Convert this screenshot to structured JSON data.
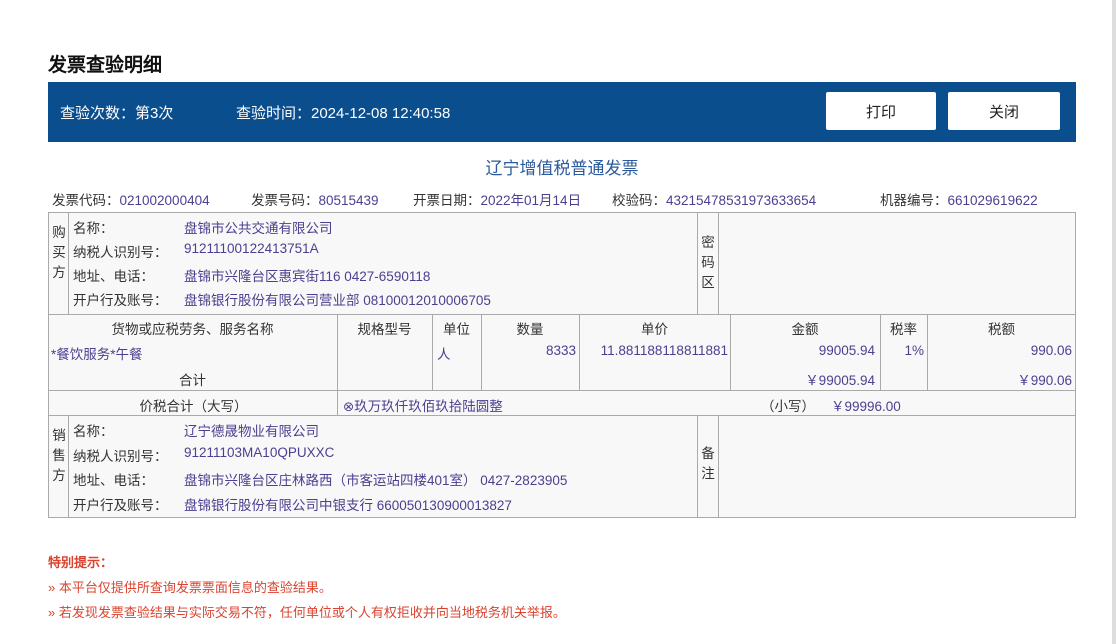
{
  "page_title": "发票查验明细",
  "bar": {
    "count_label": "查验次数：第3次",
    "time_label": "查验时间：2024-12-08 12:40:58",
    "print": "打印",
    "close": "关闭"
  },
  "invoice_title": "辽宁增值税普通发票",
  "meta": [
    {
      "label": "发票代码：",
      "value": "021002000404"
    },
    {
      "label": "发票号码：",
      "value": "80515439"
    },
    {
      "label": "开票日期：",
      "value": "2022年01月14日"
    },
    {
      "label": "校验码：",
      "value": "43215478531973633654"
    },
    {
      "label": "机器编号：",
      "value": "661029619622"
    }
  ],
  "buyer": {
    "side": "购买方",
    "fields": [
      {
        "label": "名称：",
        "value": "盘锦市公共交通有限公司"
      },
      {
        "label": "纳税人识别号：",
        "value": "91211100122413751A"
      },
      {
        "label": "地址、电话：",
        "value": "盘锦市兴隆台区惠宾街116 0427-6590118"
      },
      {
        "label": "开户行及账号：",
        "value": "盘锦银行股份有限公司营业部 08100012010006705"
      }
    ],
    "code_area": "密码区"
  },
  "items": {
    "headers": [
      "货物或应税劳务、服务名称",
      "规格型号",
      "单位",
      "数量",
      "单价",
      "金额",
      "税率",
      "税额"
    ],
    "rows": [
      [
        "*餐饮服务*午餐",
        "",
        "人",
        "8333",
        "11.881188118811881",
        "99005.94",
        "1%",
        "990.06"
      ]
    ],
    "total_label": "合计",
    "total_amount": "￥99005.94",
    "total_tax": "￥990.06"
  },
  "grand": {
    "label": "价税合计（大写）",
    "upper": "⊗玖万玖仟玖佰玖拾陆圆整",
    "small_label": "（小写）",
    "small": "￥99996.00"
  },
  "seller": {
    "side": "销售方",
    "fields": [
      {
        "label": "名称：",
        "value": "辽宁德晟物业有限公司"
      },
      {
        "label": "纳税人识别号：",
        "value": "91211103MA10QPUXXC"
      },
      {
        "label": "地址、电话：",
        "value": "盘锦市兴隆台区庄林路西（市客运站四楼401室） 0427-2823905"
      },
      {
        "label": "开户行及账号：",
        "value": "盘锦银行股份有限公司中银支行 660050130900013827"
      }
    ],
    "remark": "备注"
  },
  "notes": {
    "title": "特别提示：",
    "items": [
      "»  本平台仅提供所查询发票票面信息的查验结果。",
      "»  若发现发票查验结果与实际交易不符，任何单位或个人有权拒收并向当地税务机关举报。"
    ]
  },
  "colors": {
    "bar": "#0b4e8e",
    "value": "#4b3f8f",
    "notice": "#d9432f"
  }
}
